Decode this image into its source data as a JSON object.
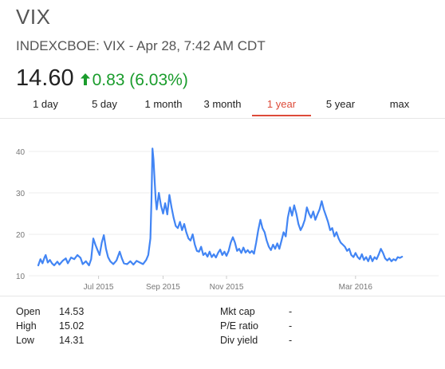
{
  "header": {
    "symbol": "VIX",
    "subtitle": "INDEXCBOE: VIX - Apr 28, 7:42 AM CDT",
    "price": "14.60",
    "change": "0.83 (6.03%)",
    "change_color": "#1a9c2c",
    "change_icon": "up-arrow-icon"
  },
  "tabs": [
    {
      "label": "1 day",
      "active": false
    },
    {
      "label": "5 day",
      "active": false
    },
    {
      "label": "1 month",
      "active": false
    },
    {
      "label": "3 month",
      "active": false
    },
    {
      "label": "1 year",
      "active": true
    },
    {
      "label": "5 year",
      "active": false
    },
    {
      "label": "max",
      "active": false
    }
  ],
  "accent_color": "#dd4b39",
  "line_color": "#4285f4",
  "stats_left": [
    {
      "label": "Open",
      "value": "14.53"
    },
    {
      "label": "High",
      "value": "15.02"
    },
    {
      "label": "Low",
      "value": "14.31"
    }
  ],
  "stats_right": [
    {
      "label": "Mkt cap",
      "value": "-"
    },
    {
      "label": "P/E ratio",
      "value": "-"
    },
    {
      "label": "Div yield",
      "value": "-"
    }
  ],
  "chart_data": {
    "type": "line",
    "ylim": [
      10,
      40
    ],
    "yticks": [
      "10",
      "20",
      "30",
      "40"
    ],
    "xticks": [
      {
        "label": "Jul 2015",
        "x": 57
      },
      {
        "label": "Sep 2015",
        "x": 118
      },
      {
        "label": "Nov 2015",
        "x": 178
      },
      {
        "label": "Mar 2016",
        "x": 300
      }
    ],
    "x_max": 365,
    "series": [
      {
        "values": [
          [
            0,
            12.5
          ],
          [
            2,
            14.0
          ],
          [
            4,
            13.0
          ],
          [
            6,
            14.5
          ],
          [
            7,
            15.0
          ],
          [
            9,
            13.2
          ],
          [
            11,
            13.8
          ],
          [
            13,
            13.0
          ],
          [
            15,
            12.5
          ],
          [
            18,
            13.4
          ],
          [
            20,
            12.7
          ],
          [
            23,
            13.6
          ],
          [
            26,
            14.2
          ],
          [
            28,
            13.0
          ],
          [
            31,
            14.4
          ],
          [
            34,
            14.0
          ],
          [
            37,
            15.0
          ],
          [
            40,
            14.3
          ],
          [
            42,
            12.8
          ],
          [
            45,
            13.5
          ],
          [
            48,
            12.5
          ],
          [
            50,
            14.0
          ],
          [
            52,
            19.0
          ],
          [
            54,
            17.5
          ],
          [
            56,
            16.2
          ],
          [
            58,
            15.0
          ],
          [
            60,
            18.0
          ],
          [
            62,
            19.8
          ],
          [
            64,
            16.5
          ],
          [
            66,
            14.5
          ],
          [
            68,
            13.5
          ],
          [
            71,
            12.8
          ],
          [
            74,
            13.7
          ],
          [
            77,
            15.8
          ],
          [
            79,
            14.2
          ],
          [
            81,
            13.0
          ],
          [
            84,
            12.8
          ],
          [
            87,
            13.5
          ],
          [
            90,
            12.7
          ],
          [
            93,
            13.6
          ],
          [
            96,
            13.2
          ],
          [
            99,
            12.8
          ],
          [
            102,
            13.8
          ],
          [
            104,
            15.0
          ],
          [
            106,
            19.0
          ],
          [
            107,
            28.0
          ],
          [
            108,
            40.7
          ],
          [
            109,
            38.0
          ],
          [
            110,
            33.0
          ],
          [
            111,
            28.5
          ],
          [
            112,
            26.0
          ],
          [
            114,
            30.0
          ],
          [
            116,
            27.0
          ],
          [
            118,
            25.0
          ],
          [
            120,
            27.5
          ],
          [
            122,
            24.8
          ],
          [
            124,
            29.5
          ],
          [
            126,
            26.5
          ],
          [
            128,
            24.0
          ],
          [
            130,
            22.0
          ],
          [
            132,
            21.5
          ],
          [
            134,
            23.0
          ],
          [
            136,
            21.0
          ],
          [
            138,
            22.5
          ],
          [
            140,
            20.5
          ],
          [
            142,
            19.0
          ],
          [
            144,
            18.5
          ],
          [
            146,
            20.0
          ],
          [
            148,
            17.5
          ],
          [
            150,
            16.0
          ],
          [
            152,
            15.8
          ],
          [
            154,
            17.0
          ],
          [
            156,
            15.0
          ],
          [
            158,
            15.5
          ],
          [
            160,
            14.6
          ],
          [
            162,
            15.8
          ],
          [
            164,
            14.5
          ],
          [
            166,
            15.2
          ],
          [
            168,
            14.4
          ],
          [
            170,
            15.5
          ],
          [
            172,
            16.3
          ],
          [
            174,
            15.0
          ],
          [
            176,
            15.8
          ],
          [
            178,
            14.8
          ],
          [
            180,
            16.0
          ],
          [
            182,
            18.0
          ],
          [
            184,
            19.3
          ],
          [
            186,
            18.0
          ],
          [
            188,
            16.0
          ],
          [
            190,
            16.5
          ],
          [
            192,
            15.5
          ],
          [
            194,
            16.8
          ],
          [
            196,
            15.6
          ],
          [
            198,
            16.2
          ],
          [
            200,
            15.5
          ],
          [
            202,
            16.0
          ],
          [
            204,
            15.3
          ],
          [
            206,
            18.0
          ],
          [
            208,
            21.0
          ],
          [
            210,
            23.5
          ],
          [
            212,
            21.5
          ],
          [
            214,
            20.5
          ],
          [
            216,
            18.5
          ],
          [
            218,
            17.0
          ],
          [
            220,
            16.2
          ],
          [
            222,
            17.5
          ],
          [
            224,
            16.5
          ],
          [
            226,
            17.8
          ],
          [
            228,
            16.5
          ],
          [
            230,
            18.5
          ],
          [
            232,
            20.5
          ],
          [
            234,
            19.5
          ],
          [
            236,
            24.0
          ],
          [
            238,
            26.5
          ],
          [
            240,
            24.5
          ],
          [
            242,
            27.0
          ],
          [
            244,
            25.0
          ],
          [
            246,
            22.5
          ],
          [
            248,
            21.0
          ],
          [
            250,
            22.0
          ],
          [
            252,
            23.5
          ],
          [
            254,
            26.5
          ],
          [
            256,
            25.0
          ],
          [
            258,
            24.0
          ],
          [
            260,
            25.5
          ],
          [
            262,
            23.5
          ],
          [
            264,
            24.8
          ],
          [
            266,
            26.0
          ],
          [
            268,
            28.0
          ],
          [
            270,
            26.0
          ],
          [
            272,
            24.5
          ],
          [
            274,
            23.0
          ],
          [
            276,
            21.0
          ],
          [
            278,
            21.5
          ],
          [
            280,
            19.5
          ],
          [
            282,
            20.5
          ],
          [
            284,
            19.0
          ],
          [
            286,
            18.0
          ],
          [
            288,
            17.5
          ],
          [
            290,
            17.0
          ],
          [
            292,
            16.0
          ],
          [
            294,
            16.5
          ],
          [
            296,
            15.0
          ],
          [
            298,
            14.5
          ],
          [
            300,
            15.5
          ],
          [
            302,
            14.5
          ],
          [
            304,
            14.0
          ],
          [
            306,
            15.2
          ],
          [
            308,
            13.8
          ],
          [
            310,
            14.5
          ],
          [
            312,
            13.5
          ],
          [
            314,
            14.8
          ],
          [
            316,
            13.5
          ],
          [
            318,
            14.5
          ],
          [
            320,
            14.0
          ],
          [
            322,
            15.2
          ],
          [
            324,
            16.5
          ],
          [
            326,
            15.5
          ],
          [
            328,
            14.2
          ],
          [
            330,
            13.7
          ],
          [
            332,
            14.2
          ],
          [
            334,
            13.5
          ],
          [
            336,
            14.0
          ],
          [
            338,
            13.7
          ],
          [
            340,
            14.5
          ],
          [
            342,
            14.3
          ],
          [
            344,
            14.6
          ]
        ]
      }
    ]
  }
}
